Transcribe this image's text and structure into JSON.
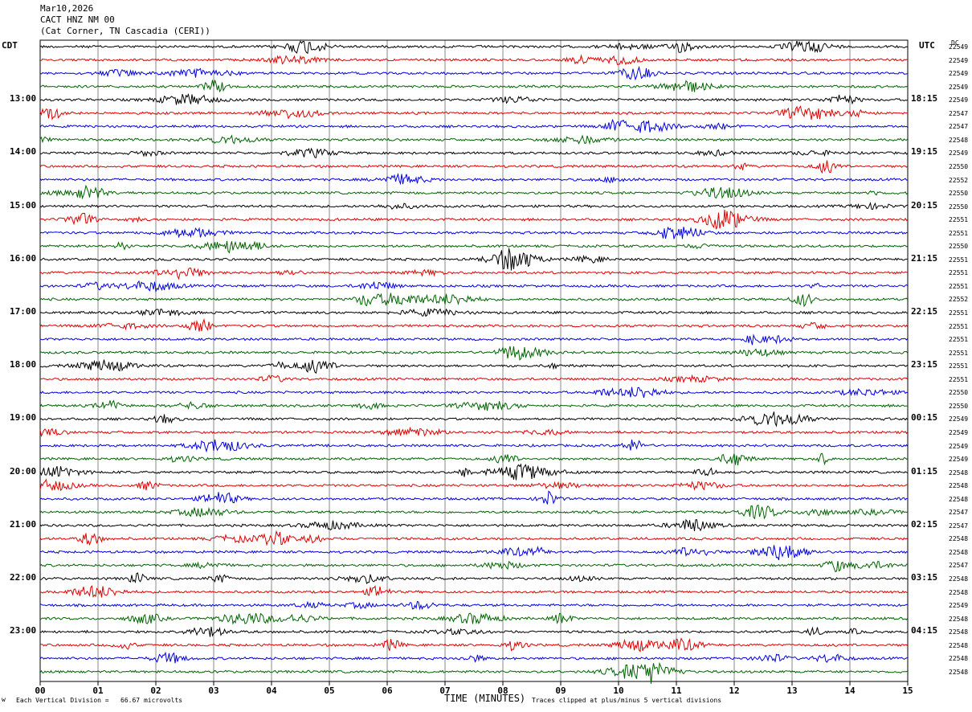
{
  "header": {
    "date": "Mar10,2026",
    "station": "CACT HNZ NM 00",
    "location": "(Cat Corner, TN Cascadia (CERI))"
  },
  "labels": {
    "left_tz": "CDT",
    "right_tz": "UTC",
    "dc": "DC"
  },
  "footer": {
    "scale": "Each Vertical Division =   66.67 microvolts",
    "clip": "Traces clipped at plus/minus 5 vertical divisions",
    "corner": "w"
  },
  "chart_data": {
    "type": "line",
    "title": "",
    "xlabel": "TIME (MINUTES)",
    "ylabel": "",
    "xlim": [
      0,
      15
    ],
    "x_ticks": [
      "00",
      "01",
      "02",
      "03",
      "04",
      "05",
      "06",
      "07",
      "08",
      "09",
      "10",
      "11",
      "12",
      "13",
      "14",
      "15"
    ],
    "grid": "vertical lines at each minute",
    "trace_colors": [
      "#000000",
      "#e00000",
      "#0000e0",
      "#006400"
    ],
    "trace_count": 48,
    "left_time_labels": [
      "13:00",
      "14:00",
      "15:00",
      "16:00",
      "17:00",
      "18:00",
      "19:00",
      "20:00",
      "21:00",
      "22:00",
      "23:00"
    ],
    "right_time_labels": [
      "18:15",
      "19:15",
      "20:15",
      "21:15",
      "22:15",
      "23:15",
      "00:15",
      "01:15",
      "02:15",
      "03:15",
      "04:15"
    ],
    "dc_offsets": [
      "22549",
      "22549",
      "22549",
      "22549",
      "22549",
      "22547",
      "22547",
      "22548",
      "22549",
      "22550",
      "22552",
      "22550",
      "22550",
      "22551",
      "22551",
      "22550",
      "22551",
      "22551",
      "22551",
      "22552",
      "22551",
      "22551",
      "22551",
      "22551",
      "22551",
      "22551",
      "22550",
      "22550",
      "22549",
      "22549",
      "22549",
      "22549",
      "22548",
      "22548",
      "22548",
      "22547",
      "22547",
      "22548",
      "22548",
      "22547",
      "22548",
      "22548",
      "22549",
      "22548",
      "22548",
      "22548",
      "22548",
      "22548"
    ]
  }
}
